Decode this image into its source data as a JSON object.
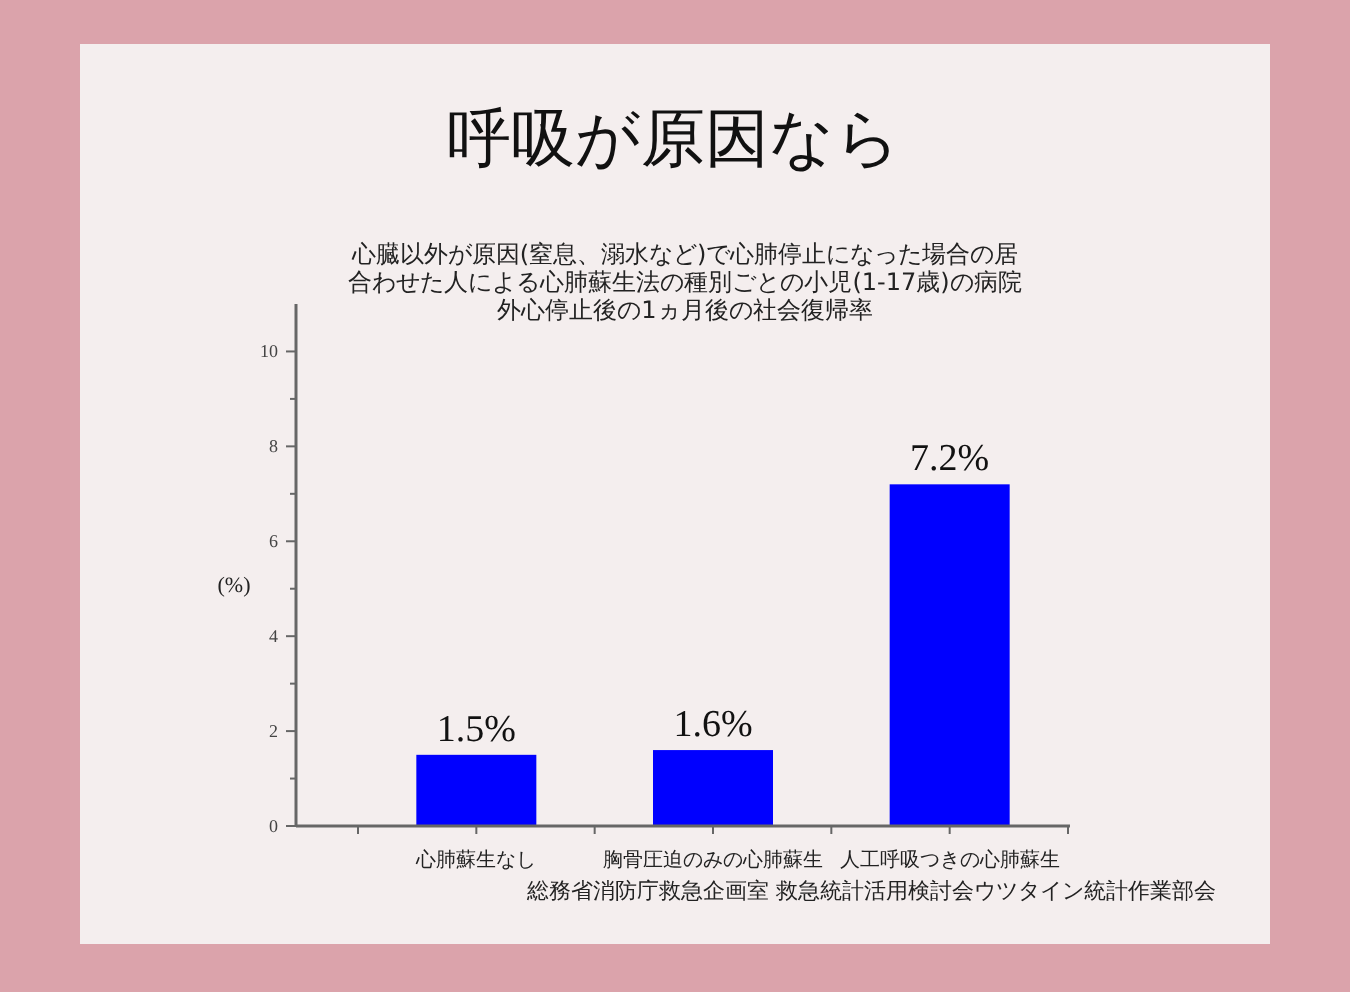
{
  "chart_data": {
    "type": "bar",
    "title": "呼吸が原因なら",
    "subtitle": "心臓以外が原因(窒息、溺水など)で心肺停止になった場合の居合わせた人による心肺蘇生法の種別ごとの小児(1-17歳)の病院外心停止後の1ヵ月後の社会復帰率",
    "ylabel": "(%)",
    "categories": [
      "心肺蘇生なし",
      "胸骨圧迫のみの心肺蘇生",
      "人工呼吸つきの心肺蘇生"
    ],
    "values": [
      1.5,
      1.6,
      7.2
    ],
    "value_labels": [
      "1.5%",
      "1.6%",
      "7.2%"
    ],
    "color": "#0000ff",
    "ylim": [
      0,
      11
    ],
    "yticks": [
      0,
      {
        "value": 1,
        "label": null
      },
      2,
      {
        "value": 3,
        "label": null
      },
      4,
      {
        "value": 5,
        "label": null
      },
      6,
      {
        "value": 7,
        "label": null
      },
      8,
      {
        "value": 9,
        "label": null
      },
      10
    ],
    "grid": false,
    "annotations": [
      "総務省消防庁救急企画室 救急統計活用検討会ウツタイン統計作業部会"
    ]
  }
}
